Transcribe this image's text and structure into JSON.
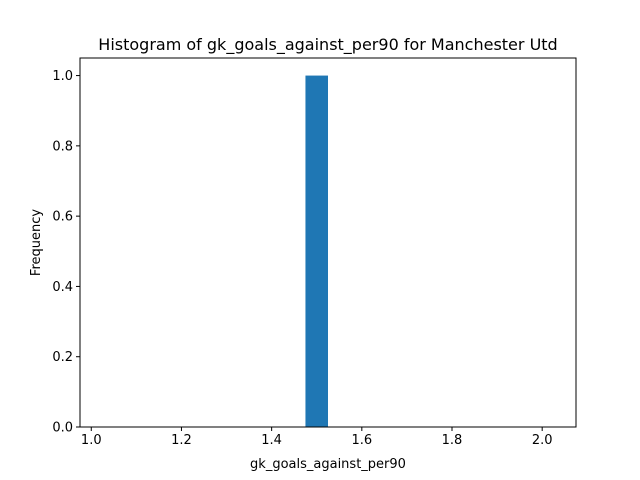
{
  "chart_data": {
    "type": "bar",
    "title": "Histogram of gk_goals_against_per90 for Manchester Utd",
    "xlabel": "gk_goals_against_per90",
    "ylabel": "Frequency",
    "xlim": [
      0.975,
      2.075
    ],
    "ylim": [
      0.0,
      1.05
    ],
    "xticks": [
      "1.0",
      "1.2",
      "1.4",
      "1.6",
      "1.8",
      "2.0"
    ],
    "xtick_values": [
      1.0,
      1.2,
      1.4,
      1.6,
      1.8,
      2.0
    ],
    "yticks": [
      "0.0",
      "0.2",
      "0.4",
      "0.6",
      "0.8",
      "1.0"
    ],
    "ytick_values": [
      0.0,
      0.2,
      0.4,
      0.6,
      0.8,
      1.0
    ],
    "bins": [
      {
        "x0": 1.475,
        "x1": 1.525,
        "value": 1.0
      }
    ],
    "grid": false,
    "bar_color": "#1f77b4"
  }
}
